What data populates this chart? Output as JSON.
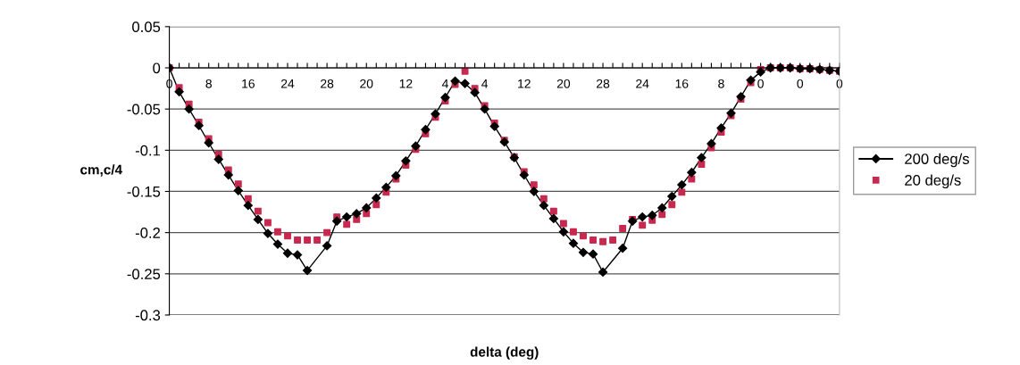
{
  "chart_data": {
    "type": "line",
    "xlabel": "delta (deg)",
    "ylabel": "cm,c/4",
    "categories": [
      "0",
      null,
      null,
      null,
      "8",
      null,
      null,
      null,
      "16",
      null,
      null,
      null,
      "24",
      null,
      null,
      null,
      "28",
      null,
      null,
      null,
      "20",
      null,
      null,
      null,
      "12",
      null,
      null,
      null,
      "4",
      null,
      null,
      null,
      "4",
      null,
      null,
      null,
      "12",
      null,
      null,
      null,
      "20",
      null,
      null,
      null,
      "28",
      null,
      null,
      null,
      "24",
      null,
      null,
      null,
      "16",
      null,
      null,
      null,
      "8",
      null,
      null,
      null,
      "0",
      null,
      null,
      null,
      "0",
      null,
      null,
      null,
      "0"
    ],
    "series": [
      {
        "name": "200 deg/s",
        "color": "#000000",
        "marker": "diamond",
        "values": [
          0,
          -0.029,
          -0.05,
          -0.07,
          -0.091,
          -0.111,
          -0.13,
          -0.149,
          -0.167,
          -0.184,
          -0.201,
          -0.214,
          -0.225,
          -0.227,
          -0.246,
          null,
          -0.216,
          -0.186,
          -0.181,
          -0.177,
          -0.17,
          -0.158,
          -0.145,
          -0.131,
          -0.113,
          -0.095,
          -0.075,
          -0.056,
          -0.036,
          -0.016,
          -0.019,
          -0.03,
          -0.05,
          -0.071,
          -0.09,
          -0.109,
          -0.13,
          -0.15,
          -0.167,
          -0.183,
          -0.199,
          -0.213,
          -0.224,
          -0.226,
          -0.248,
          null,
          -0.219,
          -0.186,
          -0.181,
          -0.179,
          -0.17,
          -0.156,
          -0.142,
          -0.127,
          -0.109,
          -0.092,
          -0.073,
          -0.055,
          -0.035,
          -0.015,
          -0.005,
          0,
          0,
          0,
          -0.001,
          -0.001,
          -0.002,
          -0.003,
          -0.004
        ]
      },
      {
        "name": "20 deg/s",
        "type": "scatter",
        "color": "#c8294f",
        "marker": "square",
        "values": [
          0,
          -0.024,
          -0.044,
          -0.066,
          -0.086,
          -0.105,
          -0.124,
          -0.141,
          -0.159,
          -0.174,
          -0.188,
          -0.199,
          -0.204,
          -0.209,
          -0.209,
          -0.209,
          -0.2,
          -0.181,
          -0.19,
          -0.184,
          -0.177,
          -0.166,
          -0.151,
          -0.135,
          -0.118,
          -0.099,
          -0.08,
          -0.06,
          -0.04,
          -0.02,
          -0.004,
          -0.025,
          -0.046,
          -0.067,
          -0.088,
          -0.108,
          -0.126,
          -0.142,
          -0.159,
          -0.174,
          -0.189,
          -0.199,
          -0.204,
          -0.209,
          -0.211,
          -0.209,
          -0.195,
          -0.184,
          -0.191,
          -0.185,
          -0.178,
          -0.166,
          -0.151,
          -0.135,
          -0.117,
          -0.097,
          -0.078,
          -0.058,
          -0.038,
          -0.018,
          -0.002,
          0,
          0,
          0,
          -0.001,
          -0.001,
          -0.002,
          -0.003,
          -0.004
        ]
      }
    ],
    "ylim": [
      -0.3,
      0.05
    ],
    "yticks": [
      0.05,
      0,
      -0.05,
      -0.1,
      -0.15,
      -0.2,
      -0.25,
      -0.3
    ],
    "grid": "y",
    "legend": "right",
    "line_style": "solid"
  }
}
